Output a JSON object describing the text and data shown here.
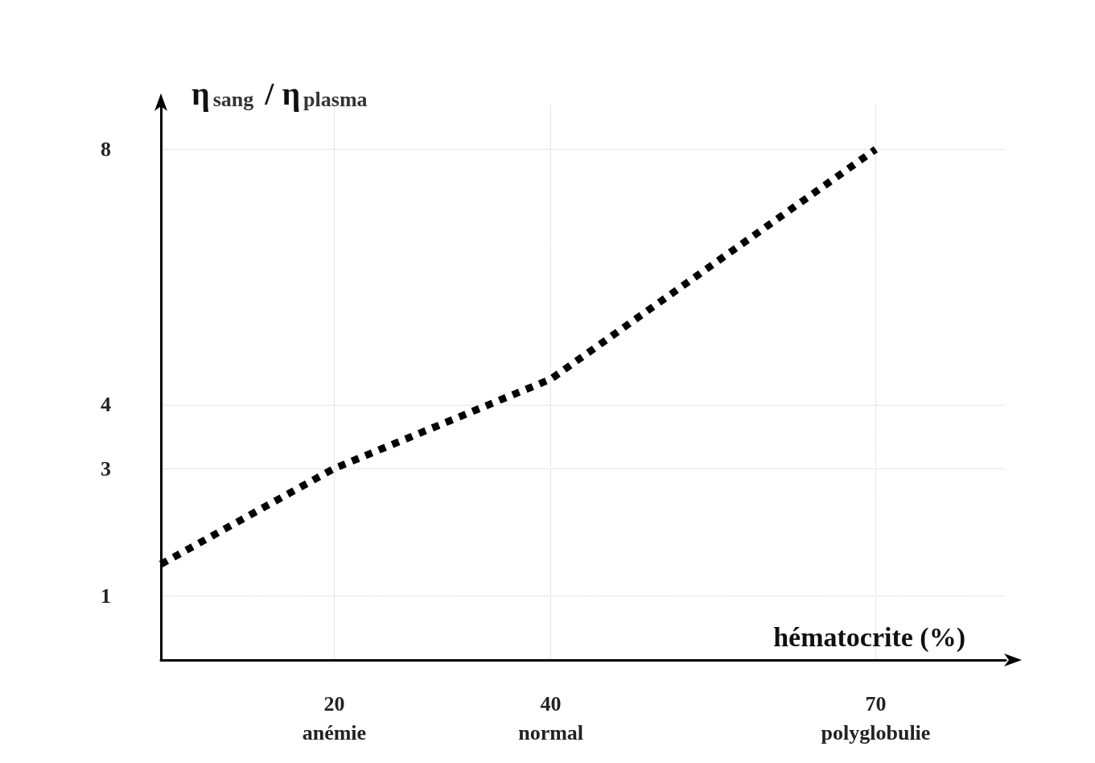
{
  "chart_data": {
    "type": "line",
    "xlabel": "hématocrite (%)",
    "ylabel": "η$_{sang}$ / η$_{plasma}$",
    "x": [
      4,
      20,
      40,
      70
    ],
    "series": [
      {
        "color": "#000000",
        "values": [
          1.5,
          3,
          4.4,
          8
        ]
      }
    ],
    "xlim": [
      4,
      82
    ],
    "xticks": [
      {
        "value": 20,
        "label": "20\nanémie"
      },
      {
        "value": 40,
        "label": "40\nnormal"
      },
      {
        "value": 70,
        "label": "70\npolyglobulie"
      }
    ],
    "ylim": [
      0,
      8.7
    ],
    "yticks": [
      1,
      3,
      4,
      8
    ],
    "grid": true,
    "marker": "none",
    "line_style": "dotted"
  }
}
